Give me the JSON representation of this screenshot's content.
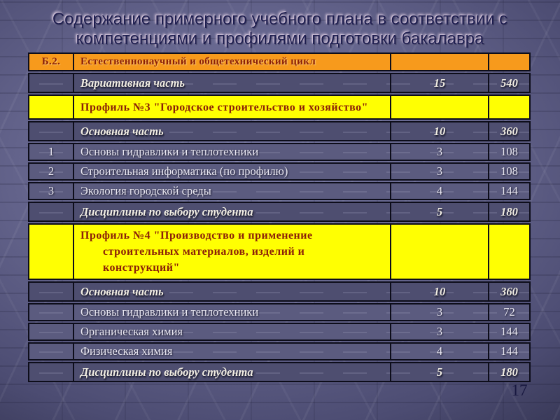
{
  "slide": {
    "title_lines": [
      "Содержание примерного учебного плана в соответствии с",
      "компетенциями и профилями подготовки бакалавра"
    ],
    "page_number": "17",
    "colors": {
      "header_orange": "#F79A1C",
      "profile_yellow": "#FFFF00",
      "header_text_red": "#8B2008",
      "row_dark": "#4E4E70",
      "row_light": "#5B5B7F",
      "row_text_ivory": "#F2EEE3",
      "border_black": "#0D0D1A",
      "background_slate": "#62628A",
      "title_navy": "#1E1E50"
    },
    "table": {
      "columns": [
        "code",
        "name",
        "credits",
        "hours"
      ],
      "rows": [
        {
          "style": "orange",
          "c1": "Б.2.",
          "c2": "Естественнонаучный и общетехнический цикл",
          "c3": "",
          "c4": ""
        },
        {
          "style": "bold",
          "c1": "",
          "c2": "Вариативная часть",
          "c3": "15",
          "c4": "540"
        },
        {
          "style": "yellow",
          "c1": "",
          "c2": "Профиль №3 \"Городское строительство и хозяйство\"",
          "c3": "",
          "c4": ""
        },
        {
          "style": "bold",
          "c1": "",
          "c2": "Основная часть",
          "c3": "10",
          "c4": "360"
        },
        {
          "style": "regular",
          "c1": "1",
          "c2": "Основы гидравлики и теплотехники",
          "c3": "3",
          "c4": "108"
        },
        {
          "style": "regular",
          "c1": "2",
          "c2": "Строительная информатика (по профилю)",
          "c3": "3",
          "c4": "108"
        },
        {
          "style": "regular",
          "c1": "3",
          "c2": "Экология городской среды",
          "c3": "4",
          "c4": "144"
        },
        {
          "style": "bold",
          "c1": "",
          "c2": "Дисциплины по выбору студента",
          "c3": "5",
          "c4": "180"
        },
        {
          "style": "yellow",
          "c1": "",
          "c2": [
            "Профиль №4 \"Производство и применение",
            "строительных материалов, изделий и",
            "конструкций\""
          ],
          "c3": "",
          "c4": ""
        },
        {
          "style": "bold",
          "c1": "",
          "c2": "Основная часть",
          "c3": "10",
          "c4": "360"
        },
        {
          "style": "regular",
          "c1": "",
          "c2": "Основы гидравлики и теплотехники",
          "c3": "3",
          "c4": "72"
        },
        {
          "style": "regular",
          "c1": "",
          "c2": "Органическая химия",
          "c3": "3",
          "c4": "144"
        },
        {
          "style": "regular",
          "c1": "",
          "c2": "Физическая химия",
          "c3": "4",
          "c4": "144"
        },
        {
          "style": "bold",
          "c1": "",
          "c2": "Дисциплины по выбору студента",
          "c3": "5",
          "c4": "180"
        }
      ]
    }
  }
}
